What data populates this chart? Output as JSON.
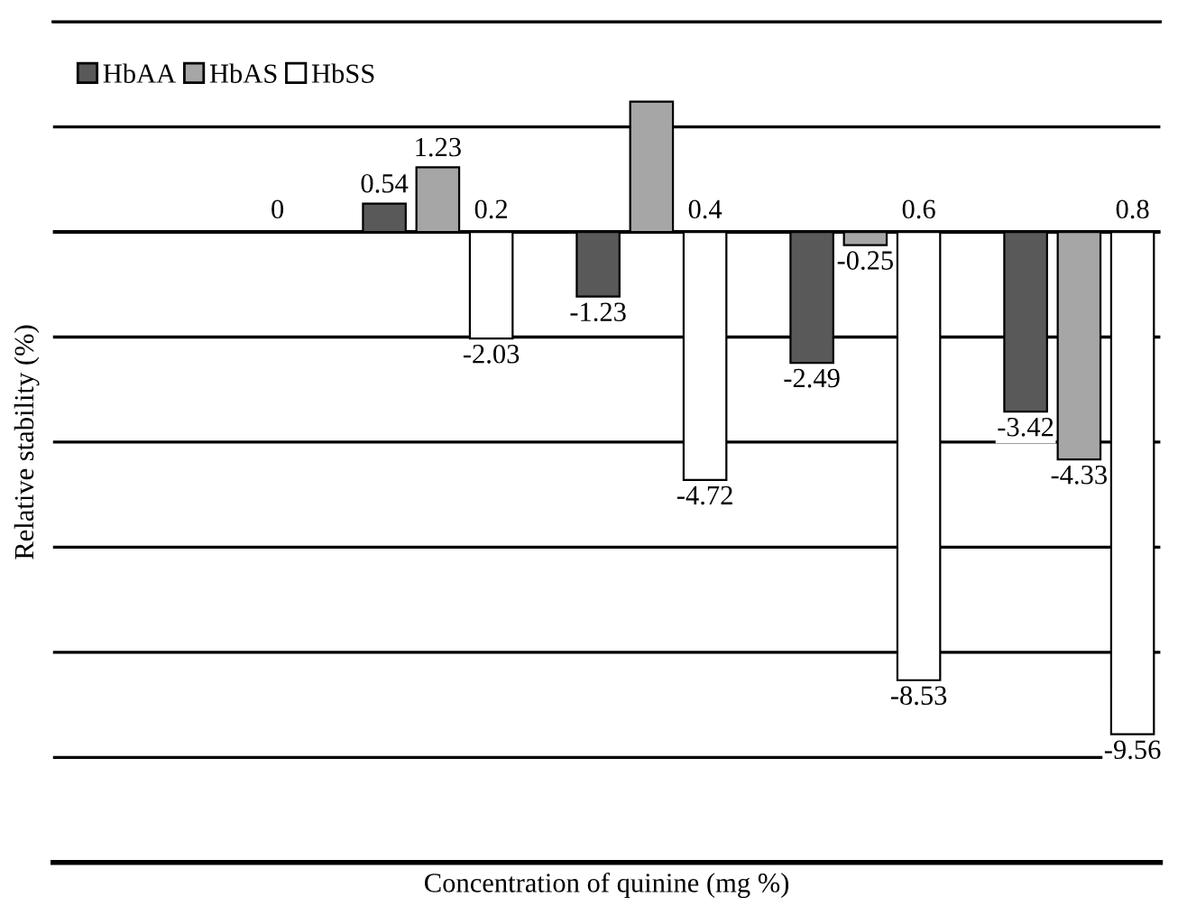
{
  "chart_data": {
    "type": "bar",
    "xlabel": "Concentration of quinine (mg %)",
    "ylabel": "Relative stability (%)",
    "categories": [
      "0",
      "0.2",
      "0.4",
      "0.6",
      "0.8"
    ],
    "series": [
      {
        "name": "HbAA",
        "color": "#595959",
        "values": [
          null,
          0.54,
          -1.23,
          -2.49,
          -3.42
        ],
        "value_labels": [
          null,
          "0.54",
          "-1.23",
          "-2.49",
          "-3.42"
        ]
      },
      {
        "name": "HbAS",
        "color": "#a6a6a6",
        "values": [
          null,
          1.23,
          2.48,
          -0.25,
          -4.33
        ],
        "value_labels": [
          null,
          "1.23",
          null,
          "-0.25",
          "-4.33"
        ]
      },
      {
        "name": "HbSS",
        "color": "#ffffff",
        "values": [
          null,
          -2.03,
          -4.72,
          -8.53,
          -9.56
        ],
        "value_labels": [
          null,
          "-2.03",
          "-4.72",
          "-8.53",
          "-9.56"
        ]
      }
    ],
    "ylim": [
      -12,
      4
    ],
    "yticks": [
      {
        "value": -12,
        "label": null
      },
      {
        "value": -10,
        "label": null
      },
      {
        "value": -8,
        "label": null
      },
      {
        "value": -6,
        "label": null
      },
      {
        "value": -4,
        "label": null
      },
      {
        "value": -2,
        "label": null
      },
      {
        "value": 0,
        "label": null
      },
      {
        "value": 2,
        "label": null
      },
      {
        "value": 4,
        "label": null
      }
    ],
    "grid": "y",
    "legend": "top left"
  }
}
